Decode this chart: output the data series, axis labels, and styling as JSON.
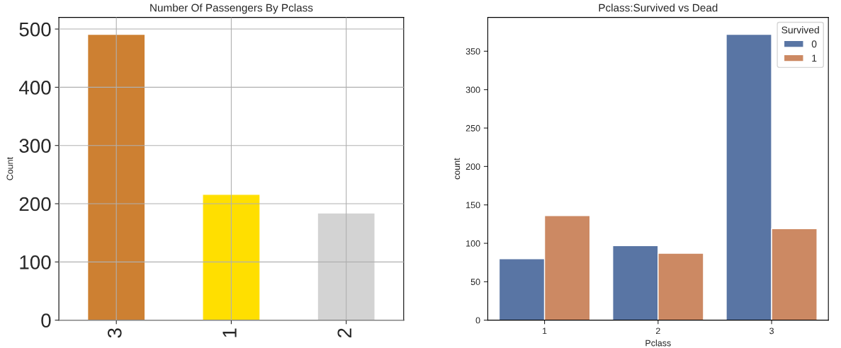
{
  "chart_data": [
    {
      "type": "bar",
      "title": "Number Of Passengers By Pclass",
      "ylabel": "Count",
      "categories": [
        "3",
        "1",
        "2"
      ],
      "values": [
        491,
        216,
        184
      ],
      "colors": [
        "#cd8032",
        "#ffdf00",
        "#d3d3d3"
      ],
      "ylim": [
        0,
        520
      ],
      "yticks": [
        0,
        100,
        200,
        300,
        400,
        500
      ],
      "grid": true
    },
    {
      "type": "bar",
      "title": "Pclass:Survived vs Dead",
      "xlabel": "Pclass",
      "ylabel": "count",
      "categories": [
        "1",
        "2",
        "3"
      ],
      "series": [
        {
          "name": "0",
          "color": "#5975a4",
          "values": [
            80,
            97,
            372
          ]
        },
        {
          "name": "1",
          "color": "#cc8963",
          "values": [
            136,
            87,
            119
          ]
        }
      ],
      "ylim": [
        0,
        394
      ],
      "yticks": [
        0,
        50,
        100,
        150,
        200,
        250,
        300,
        350
      ],
      "legend": "top right",
      "legend_title": "Survived"
    }
  ]
}
